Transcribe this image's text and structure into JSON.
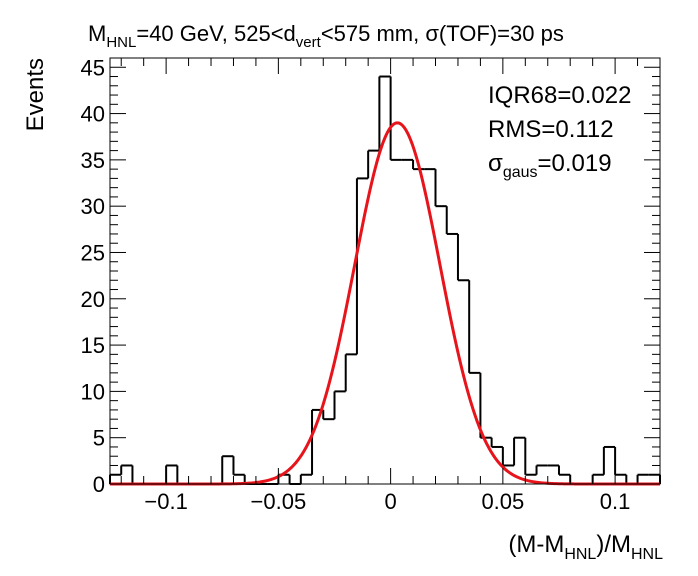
{
  "chart_data": {
    "type": "histogram",
    "title_parts": {
      "m": "M",
      "m_sub": "HNL",
      "mid": "=40 GeV, 525<d",
      "d_sub": "vert",
      "rest": "<575 mm, σ(TOF)=30 ps"
    },
    "ylabel": "Events",
    "xlabel_parts": {
      "a": "(M-M",
      "a_sub": "HNL",
      "b": ")/M",
      "b_sub": "HNL"
    },
    "stats": {
      "iqr": "IQR68=0.022",
      "rms": "RMS=0.112",
      "sg_sym": "σ",
      "sg_sub": "gaus",
      "sg_val": "=0.019"
    },
    "xlim": [
      -0.125,
      0.12
    ],
    "ylim": [
      0,
      46
    ],
    "x_ticks": [
      -0.1,
      -0.05,
      0,
      0.05,
      0.1
    ],
    "x_tick_labels": [
      "−0.1",
      "−0.05",
      "0",
      "0.05",
      "0.1"
    ],
    "y_ticks": [
      0,
      5,
      10,
      15,
      20,
      25,
      30,
      35,
      40,
      45
    ],
    "y_tick_labels": [
      "0",
      "5",
      "10",
      "15",
      "20",
      "25",
      "30",
      "35",
      "40",
      "45"
    ],
    "bin_width": 0.005,
    "bin_low_edges": [
      -0.125,
      -0.12,
      -0.115,
      -0.11,
      -0.105,
      -0.1,
      -0.095,
      -0.09,
      -0.085,
      -0.08,
      -0.075,
      -0.07,
      -0.065,
      -0.06,
      -0.055,
      -0.05,
      -0.045,
      -0.04,
      -0.035,
      -0.03,
      -0.025,
      -0.02,
      -0.015,
      -0.01,
      -0.005,
      0.0,
      0.005,
      0.01,
      0.015,
      0.02,
      0.025,
      0.03,
      0.035,
      0.04,
      0.045,
      0.05,
      0.055,
      0.06,
      0.065,
      0.07,
      0.075,
      0.08,
      0.085,
      0.09,
      0.095,
      0.1,
      0.105,
      0.11,
      0.115
    ],
    "counts": [
      1,
      2,
      0,
      0,
      0,
      2,
      0,
      0,
      0,
      0,
      3,
      1,
      0,
      0,
      0,
      1,
      0,
      1,
      8,
      7,
      10,
      14,
      33,
      36,
      44,
      35,
      35,
      34,
      34,
      30,
      27,
      22,
      12,
      5,
      4,
      2,
      5,
      1,
      2,
      2,
      1,
      0,
      0,
      1,
      4,
      1,
      0,
      1,
      1
    ],
    "fit": {
      "type": "gaussian",
      "amplitude": 39,
      "mean": 0.003,
      "sigma": 0.019,
      "color": "#e8141b"
    },
    "hist_color": "#000000",
    "grid": false,
    "legend": "none"
  }
}
